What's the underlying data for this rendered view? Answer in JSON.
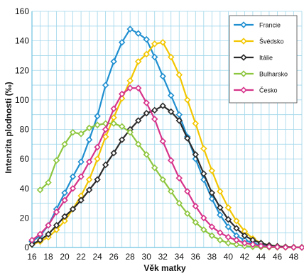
{
  "chart_data": {
    "type": "line",
    "xlabel": "Věk matky",
    "ylabel": "Intenzita plodnosti (‰)",
    "xlim": [
      16,
      49
    ],
    "ylim": [
      0,
      160
    ],
    "x_ticks": [
      16,
      18,
      20,
      22,
      24,
      26,
      28,
      30,
      32,
      34,
      36,
      38,
      40,
      42,
      44,
      46,
      48
    ],
    "y_ticks": [
      0,
      20,
      40,
      60,
      80,
      100,
      120,
      140,
      160
    ],
    "grid": true,
    "legend_position": "top-right",
    "x": [
      16,
      17,
      18,
      19,
      20,
      21,
      22,
      23,
      24,
      25,
      26,
      27,
      28,
      29,
      30,
      31,
      32,
      33,
      34,
      35,
      36,
      37,
      38,
      39,
      40,
      41,
      42,
      43,
      44,
      45,
      46,
      47,
      48,
      49
    ],
    "series": [
      {
        "name": "Francie",
        "color": "#1f8fd0",
        "values": [
          4,
          8,
          15,
          26,
          37,
          48,
          58,
          73,
          89,
          110,
          126,
          139,
          148,
          145,
          141,
          129,
          116,
          103,
          90,
          75,
          60,
          46,
          33,
          22,
          14,
          8,
          5,
          3,
          1.5,
          0.8,
          0.4,
          0.2,
          0.1,
          0
        ]
      },
      {
        "name": "Švédsko",
        "color": "#f2c600",
        "values": [
          2,
          4,
          7,
          12,
          18,
          26,
          35,
          46,
          60,
          75,
          88,
          101,
          113,
          126,
          131,
          138,
          139,
          129,
          117,
          100,
          84,
          67,
          52,
          38,
          27,
          18,
          11,
          6,
          3,
          1.5,
          0.8,
          0.4,
          0.2,
          0.1
        ]
      },
      {
        "name": "Itálie",
        "color": "#2b2b2b",
        "values": [
          2,
          5,
          9,
          15,
          21,
          26,
          32,
          39,
          46,
          56,
          64,
          73,
          80,
          86,
          91,
          93,
          96,
          92,
          86,
          74,
          63,
          50,
          37,
          27,
          19,
          13,
          8,
          5,
          3,
          1.5,
          0.8,
          0.4,
          0.2,
          0.1
        ]
      },
      {
        "name": "Bulharsko",
        "color": "#8dc63f",
        "values": [
          null,
          39,
          44,
          59,
          70,
          78,
          77,
          81,
          83,
          84,
          84,
          82,
          78,
          70,
          63,
          54,
          46,
          38,
          30,
          23,
          17,
          12,
          8,
          5,
          3,
          2,
          1,
          0.5,
          0.3,
          0.1,
          0.05,
          0,
          0,
          0
        ]
      },
      {
        "name": "Česko",
        "color": "#d6338a",
        "values": [
          5,
          9,
          15,
          24,
          32,
          40,
          48,
          58,
          68,
          80,
          94,
          104,
          108,
          108,
          98,
          87,
          72,
          59,
          47,
          38,
          28,
          20,
          14,
          10,
          7,
          5,
          3,
          2,
          1,
          0.5,
          0.3,
          0.1,
          0.05,
          0
        ]
      }
    ]
  }
}
